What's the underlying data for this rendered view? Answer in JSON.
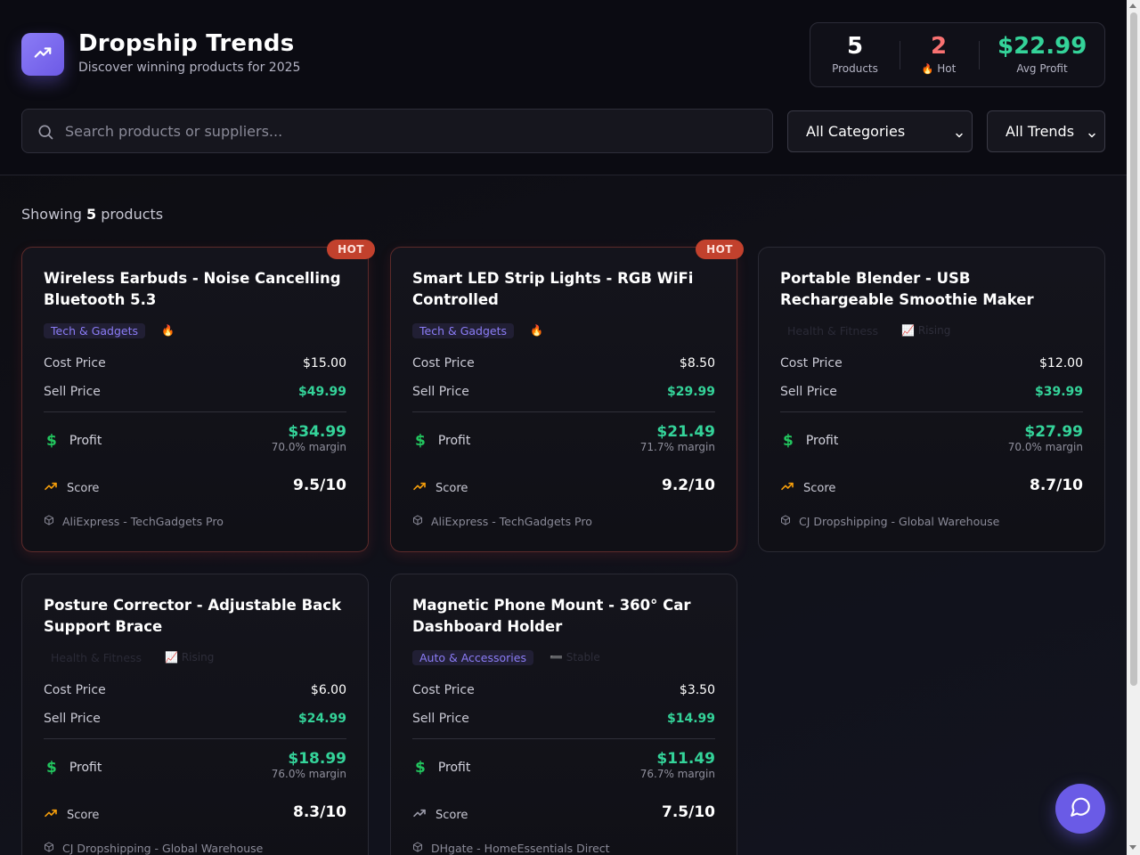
{
  "header": {
    "title": "Dropship Trends",
    "subtitle": "Discover winning products for 2025",
    "logo_icon": "trending-up-icon"
  },
  "stats": {
    "products_value": "5",
    "products_label": "Products",
    "hot_value": "2",
    "hot_label": "Hot",
    "avg_profit_value": "$22.99",
    "avg_profit_label": "Avg Profit"
  },
  "search": {
    "placeholder": "Search products or suppliers..."
  },
  "filters": {
    "category": "All Categories",
    "trend": "All Trends"
  },
  "results": {
    "prefix": "Showing",
    "count": "5",
    "suffix": "products"
  },
  "labels": {
    "cost": "Cost Price",
    "sell": "Sell Price",
    "profit": "Profit",
    "score": "Score"
  },
  "colors": {
    "accent": "#6d5ae6",
    "profit_green": "#34d399",
    "hot": "#c2412d",
    "rising": "#f59e0b"
  },
  "products": [
    {
      "name": "Wireless Earbuds - Noise Cancelling Bluetooth 5.3",
      "badge": "HOT",
      "category": "Tech & Gadgets",
      "trend_icon": "🔥",
      "trend_text": "",
      "cost": "$15.00",
      "sell": "$49.99",
      "profit": "$34.99",
      "margin": "70.0% margin",
      "score": "9.5/10",
      "supplier": "AliExpress - TechGadgets Pro"
    },
    {
      "name": "Smart LED Strip Lights - RGB WiFi Controlled",
      "badge": "HOT",
      "category": "Tech & Gadgets",
      "trend_icon": "🔥",
      "trend_text": "",
      "cost": "$8.50",
      "sell": "$29.99",
      "profit": "$21.49",
      "margin": "71.7% margin",
      "score": "9.2/10",
      "supplier": "AliExpress - TechGadgets Pro"
    },
    {
      "name": "Portable Blender - USB Rechargeable Smoothie Maker",
      "badge": "",
      "category": "Health & Fitness",
      "trend_icon": "📈",
      "trend_text": "Rising",
      "cost": "$12.00",
      "sell": "$39.99",
      "profit": "$27.99",
      "margin": "70.0% margin",
      "score": "8.7/10",
      "supplier": "CJ Dropshipping - Global Warehouse"
    },
    {
      "name": "Posture Corrector - Adjustable Back Support Brace",
      "badge": "",
      "category": "Health & Fitness",
      "trend_icon": "📈",
      "trend_text": "Rising",
      "cost": "$6.00",
      "sell": "$24.99",
      "profit": "$18.99",
      "margin": "76.0% margin",
      "score": "8.3/10",
      "supplier": "CJ Dropshipping - Global Warehouse"
    },
    {
      "name": "Magnetic Phone Mount - 360° Car Dashboard Holder",
      "badge": "",
      "category": "Auto & Accessories",
      "trend_icon": "",
      "trend_text": "Stable",
      "cost": "$3.50",
      "sell": "$14.99",
      "profit": "$11.49",
      "margin": "76.7% margin",
      "score": "7.5/10",
      "supplier": "DHgate - HomeEssentials Direct"
    }
  ]
}
